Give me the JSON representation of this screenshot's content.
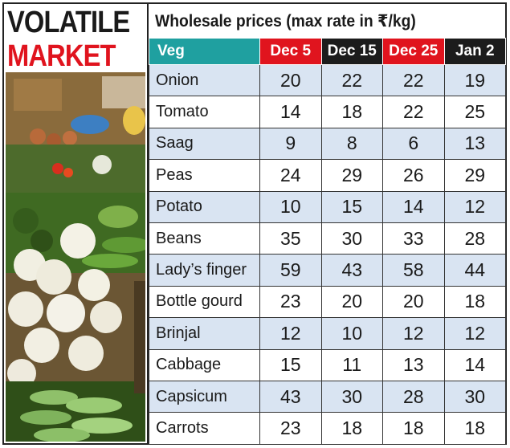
{
  "headline": {
    "line1": "VOLATILE",
    "line2": "MARKET"
  },
  "photo": {
    "subject": "vegetable-market-photo"
  },
  "colors": {
    "teal": "#1fa0a0",
    "red": "#e0141e",
    "dark": "#1c1c1c",
    "shade": "#d9e4f2"
  },
  "chart_data": {
    "type": "table",
    "title": "Wholesale prices (max rate in ₹/kg)",
    "columns": [
      "Veg",
      "Dec 5",
      "Dec 15",
      "Dec 25",
      "Jan 2"
    ],
    "rows": [
      {
        "veg": "Onion",
        "values": [
          20,
          22,
          22,
          19
        ]
      },
      {
        "veg": "Tomato",
        "values": [
          14,
          18,
          22,
          25
        ]
      },
      {
        "veg": "Saag",
        "values": [
          9,
          8,
          6,
          13
        ]
      },
      {
        "veg": "Peas",
        "values": [
          24,
          29,
          26,
          29
        ]
      },
      {
        "veg": "Potato",
        "values": [
          10,
          15,
          14,
          12
        ]
      },
      {
        "veg": "Beans",
        "values": [
          35,
          30,
          33,
          28
        ]
      },
      {
        "veg": "Lady’s finger",
        "values": [
          59,
          43,
          58,
          44
        ]
      },
      {
        "veg": "Bottle gourd",
        "values": [
          23,
          20,
          20,
          18
        ]
      },
      {
        "veg": "Brinjal",
        "values": [
          12,
          10,
          12,
          12
        ]
      },
      {
        "veg": "Cabbage",
        "values": [
          15,
          11,
          13,
          14
        ]
      },
      {
        "veg": "Capsicum",
        "values": [
          43,
          30,
          28,
          30
        ]
      },
      {
        "veg": "Carrots",
        "values": [
          23,
          18,
          18,
          18
        ]
      }
    ]
  }
}
